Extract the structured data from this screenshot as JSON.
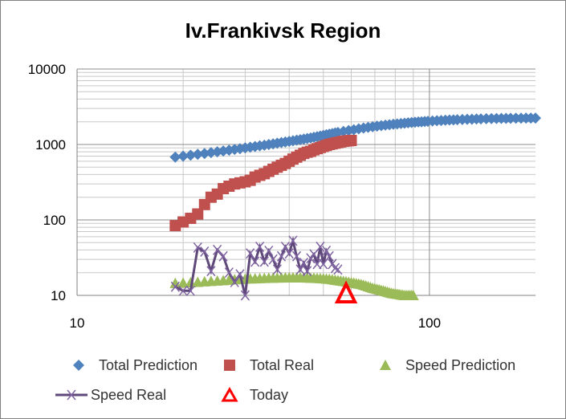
{
  "chart_data": {
    "type": "scatter",
    "title": "Iv.Frankivsk Region",
    "x_scale": "log",
    "y_scale": "log",
    "xlim": [
      10,
      200
    ],
    "ylim": [
      10,
      10000
    ],
    "x_ticks": [
      "10",
      "100"
    ],
    "y_ticks": [
      "10",
      "100",
      "1000",
      "10000"
    ],
    "grid": true,
    "legend_position": "bottom",
    "series": [
      {
        "name": "Total Prediction",
        "color": "#4F81BD",
        "marker": "diamond",
        "line": false,
        "x": [
          19,
          20,
          21,
          22,
          23,
          24,
          25,
          26,
          27,
          28,
          29,
          30,
          31,
          32,
          33,
          34,
          35,
          36,
          37,
          38,
          39,
          40,
          41,
          42,
          43,
          44,
          45,
          46,
          47,
          48,
          49,
          50,
          51,
          52,
          53,
          54,
          55,
          57,
          59,
          61,
          63,
          65,
          67,
          69,
          71,
          73,
          75,
          77,
          79,
          81,
          83,
          85,
          87,
          89,
          91,
          93,
          95,
          97,
          99,
          102,
          105,
          108,
          111,
          114,
          117,
          120,
          124,
          128,
          132,
          136,
          140,
          145,
          150,
          155,
          160,
          165,
          170,
          176,
          182,
          188,
          194,
          200
        ],
        "y": [
          680,
          700,
          720,
          740,
          760,
          780,
          800,
          820,
          840,
          860,
          880,
          900,
          920,
          940,
          960,
          980,
          1000,
          1020,
          1040,
          1060,
          1080,
          1100,
          1120,
          1140,
          1160,
          1180,
          1200,
          1220,
          1245,
          1270,
          1295,
          1320,
          1345,
          1370,
          1395,
          1420,
          1445,
          1490,
          1530,
          1570,
          1610,
          1650,
          1690,
          1720,
          1750,
          1780,
          1805,
          1830,
          1855,
          1875,
          1895,
          1915,
          1935,
          1955,
          1975,
          1990,
          2000,
          2015,
          2030,
          2050,
          2065,
          2080,
          2095,
          2110,
          2120,
          2130,
          2145,
          2155,
          2165,
          2175,
          2185,
          2195,
          2200,
          2210,
          2215,
          2220,
          2225,
          2230,
          2232,
          2235,
          2237,
          2240
        ]
      },
      {
        "name": "Total Real",
        "color": "#C0504D",
        "marker": "square",
        "line": false,
        "x": [
          19,
          20,
          21,
          22,
          23,
          24,
          25,
          26,
          27,
          28,
          29,
          30,
          31,
          32,
          33,
          34,
          35,
          36,
          37,
          38,
          39,
          40,
          41,
          42,
          43,
          44,
          45,
          46,
          47,
          48,
          49,
          50,
          51,
          52,
          53,
          54,
          55,
          56,
          57,
          58,
          59,
          60
        ],
        "y": [
          84,
          94,
          105,
          120,
          160,
          200,
          220,
          260,
          280,
          300,
          310,
          320,
          335,
          370,
          390,
          410,
          440,
          470,
          500,
          530,
          560,
          600,
          640,
          680,
          720,
          760,
          790,
          810,
          850,
          880,
          910,
          940,
          970,
          1000,
          1020,
          1040,
          1060,
          1080,
          1100,
          1110,
          1120,
          1130
        ]
      },
      {
        "name": "Speed Prediction",
        "color": "#9BBB59",
        "marker": "triangle",
        "line": false,
        "x": [
          19,
          20,
          21,
          22,
          23,
          24,
          25,
          26,
          27,
          28,
          29,
          30,
          31,
          32,
          33,
          34,
          35,
          36,
          37,
          38,
          39,
          40,
          41,
          42,
          43,
          44,
          45,
          46,
          47,
          48,
          49,
          50,
          51,
          52,
          53,
          54,
          55,
          56,
          57,
          58,
          59,
          60,
          61,
          62,
          63,
          64,
          65,
          66,
          67,
          68,
          69,
          70,
          71,
          72,
          73,
          74,
          75,
          76,
          77,
          78,
          79,
          80,
          81,
          82,
          83,
          84,
          85,
          86,
          87,
          88,
          89,
          90
        ],
        "y": [
          14.5,
          14.6,
          14.8,
          15.0,
          15.2,
          15.4,
          15.6,
          15.8,
          16.0,
          16.2,
          16.3,
          16.5,
          16.6,
          16.7,
          16.8,
          16.9,
          17.0,
          17.0,
          17.1,
          17.1,
          17.2,
          17.2,
          17.2,
          17.2,
          17.2,
          17.2,
          17.1,
          17.0,
          17.0,
          16.9,
          16.8,
          16.7,
          16.5,
          16.4,
          16.2,
          16.0,
          15.8,
          15.6,
          15.4,
          15.2,
          15.0,
          14.8,
          14.6,
          14.4,
          14.2,
          14.0,
          13.7,
          13.4,
          13.1,
          12.8,
          12.5,
          12.3,
          12.1,
          11.9,
          11.7,
          11.5,
          11.3,
          11.1,
          10.9,
          10.7,
          10.6,
          10.5,
          10.4,
          10.3,
          10.2,
          10.1,
          10.0,
          10.0,
          10.0,
          10.0,
          10.0,
          10.0
        ]
      },
      {
        "name": "Speed Real",
        "color": "#5F497A",
        "marker": "x",
        "line": true,
        "x": [
          19,
          20,
          21,
          22,
          23,
          24,
          25,
          26,
          27,
          28,
          29,
          30,
          31,
          32,
          33,
          34,
          35,
          36,
          37,
          38,
          39,
          40,
          41,
          42,
          43,
          44,
          45,
          46,
          47,
          48,
          49,
          50,
          51,
          52,
          53,
          54,
          55
        ],
        "y": [
          13,
          11.5,
          11.5,
          43,
          38,
          21,
          40,
          33,
          20,
          15,
          19,
          10,
          36,
          28,
          44,
          28,
          39,
          30,
          22,
          33,
          44,
          36,
          53,
          33,
          22,
          27,
          21,
          31,
          35,
          26,
          44,
          26,
          39,
          33,
          26,
          23,
          22
        ]
      },
      {
        "name": "Today",
        "color": "#FF0000",
        "marker": "triangle-open",
        "line": false,
        "x": [
          58
        ],
        "y": [
          10
        ]
      }
    ]
  }
}
